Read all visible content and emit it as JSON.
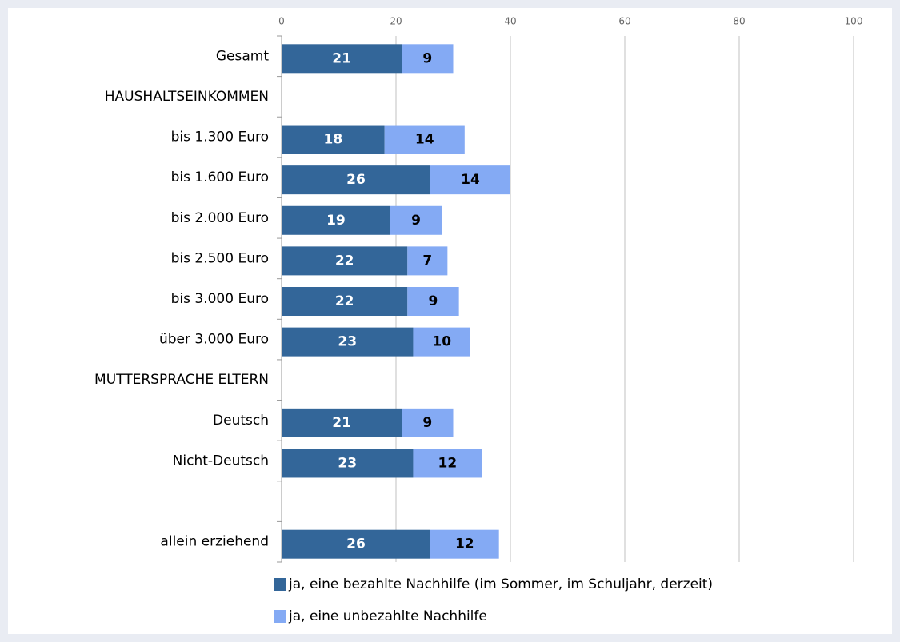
{
  "chart_data": {
    "type": "stacked_barh",
    "categories": [
      "Gesamt",
      "HAUSHALTSEINKOMMEN",
      "bis 1.300 Euro",
      "bis 1.600 Euro",
      "bis 2.000 Euro",
      "bis 2.500 Euro",
      "bis 3.000 Euro",
      "über 3.000 Euro",
      "MUTTERSPRACHE ELTERN",
      "Deutsch",
      "Nicht-Deutsch",
      null,
      "allein erziehend"
    ],
    "series": [
      {
        "name": "ja, eine bezahlte Nachhilfe (im Sommer, im Schuljahr, derzeit)",
        "color": "#336699",
        "values": [
          21,
          null,
          18,
          26,
          19,
          22,
          22,
          23,
          null,
          21,
          23,
          null,
          26
        ]
      },
      {
        "name": "ja, eine unbezahlte Nachhilfe",
        "color": "#84aaf4",
        "values": [
          9,
          null,
          14,
          14,
          9,
          7,
          9,
          10,
          null,
          9,
          12,
          null,
          12
        ]
      }
    ],
    "xlim": [
      0,
      100
    ],
    "xticks": [
      0,
      20,
      40,
      60,
      80,
      100
    ],
    "grid": true,
    "legend": "bottom"
  }
}
